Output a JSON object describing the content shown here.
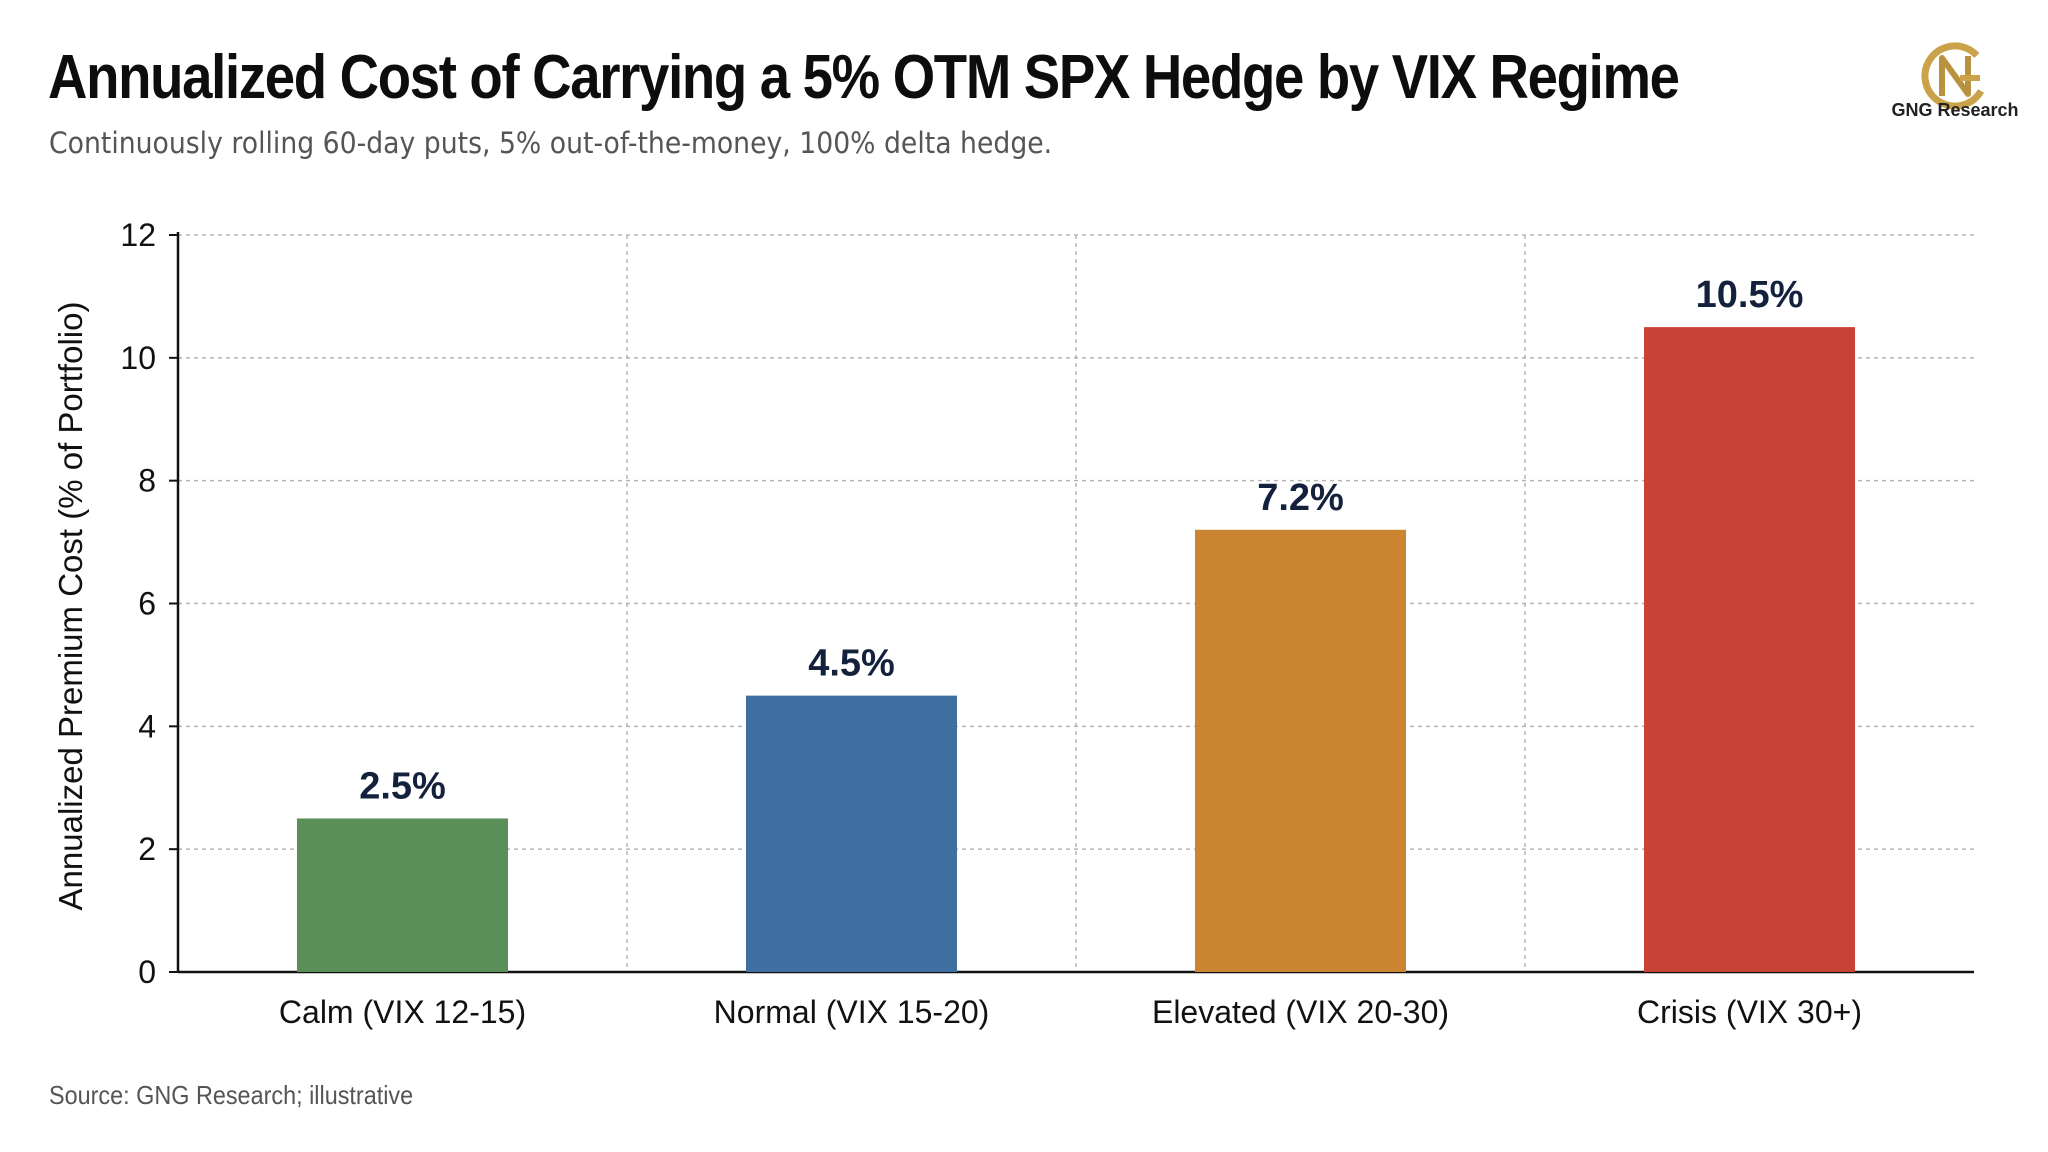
{
  "title": "Annualized Cost of Carrying a 5% OTM SPX Hedge by VIX Regime",
  "subtitle": "Continuously rolling 60-day puts, 5% out-of-the-money, 100% delta hedge.",
  "source": "Source: GNG Research; illustrative",
  "logo": {
    "text": "GNG Research",
    "icon": "gng-monogram-icon",
    "color": "#C9A24A"
  },
  "chart_data": {
    "type": "bar",
    "title": "Annualized Cost of Carrying a 5% OTM SPX Hedge by VIX Regime",
    "xlabel": "",
    "ylabel": "Annualized Premium Cost (% of Portfolio)",
    "categories": [
      "Calm (VIX 12-15)",
      "Normal (VIX 15-20)",
      "Elevated (VIX 20-30)",
      "Crisis (VIX 30+)"
    ],
    "values": [
      2.5,
      4.5,
      7.2,
      10.5
    ],
    "value_labels": [
      "2.5%",
      "4.5%",
      "7.2%",
      "10.5%"
    ],
    "colors": [
      "#5A8F5A",
      "#3F6FA0",
      "#CB8530",
      "#C94236"
    ],
    "ylim": [
      0,
      12
    ],
    "yticks": [
      0,
      2,
      4,
      6,
      8,
      10,
      12
    ],
    "grid": true
  }
}
